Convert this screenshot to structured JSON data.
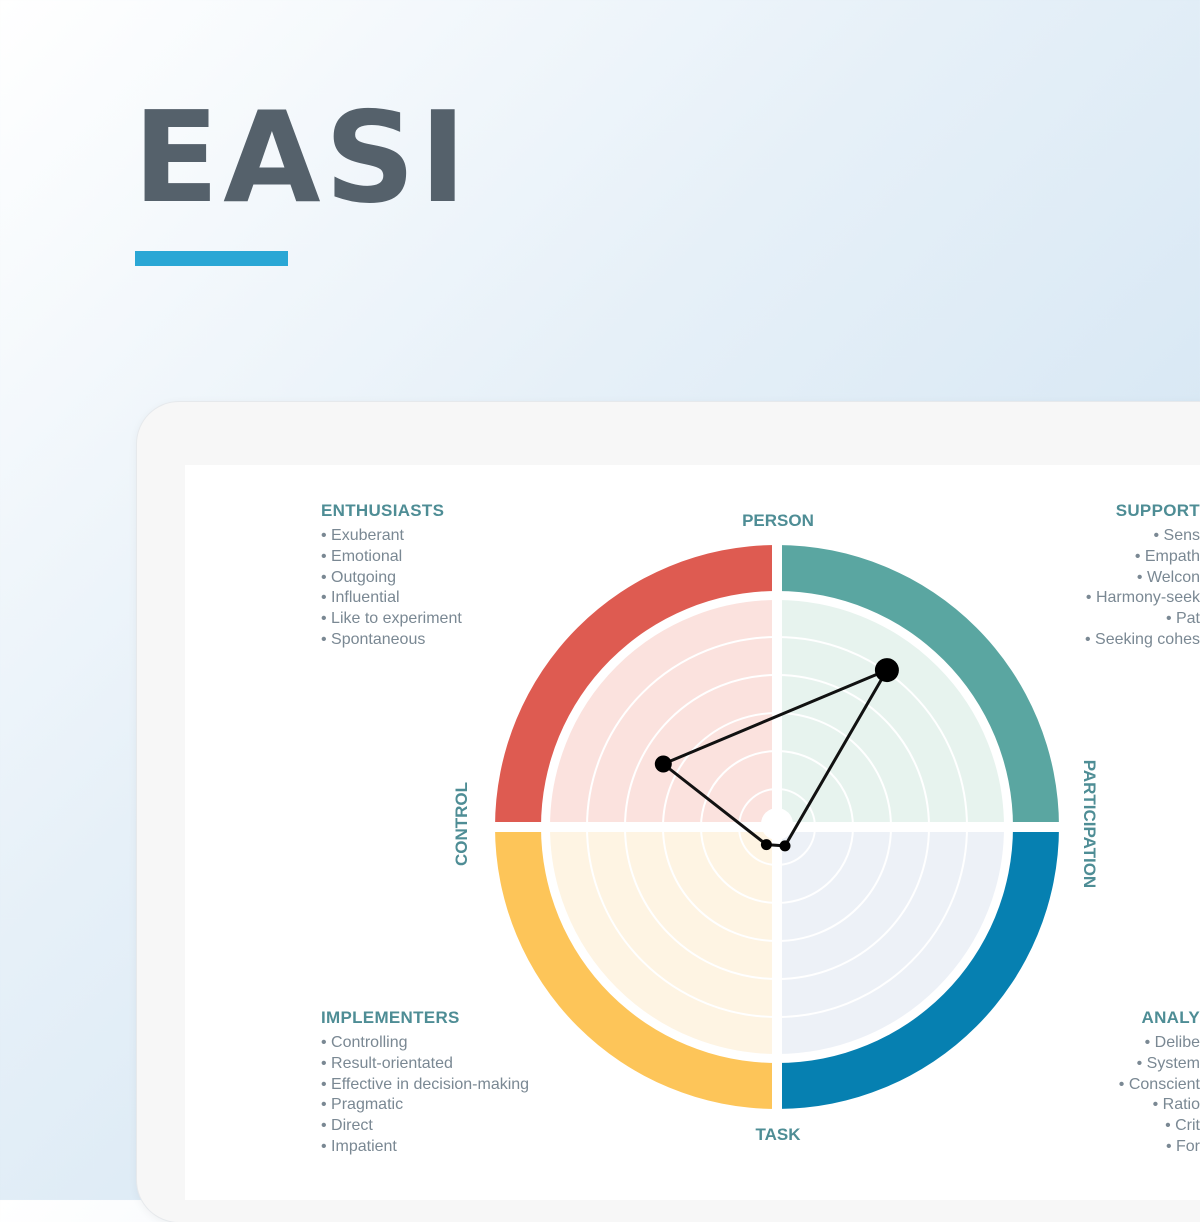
{
  "logo": {
    "text": "EASI",
    "underline_color": "#2aa7d5"
  },
  "quadrants": {
    "enthusiasts": {
      "title": "ENTHUSIASTS",
      "items": [
        "Exuberant",
        "Emotional",
        "Outgoing",
        "Influential",
        "Like to experiment",
        "Spontaneous"
      ]
    },
    "supporters": {
      "title": "SUPPORT",
      "items": [
        "Sens",
        "Empath",
        "Welcon",
        "Harmony-seek",
        "Pat",
        "Seeking cohes"
      ]
    },
    "implementers": {
      "title": "IMPLEMENTERS",
      "items": [
        "Controlling",
        "Result-orientated",
        "Effective in decision-making",
        "Pragmatic",
        "Direct",
        "Impatient"
      ]
    },
    "analysts": {
      "title": "ANALY",
      "items": [
        "Delibe",
        "System",
        "Conscient",
        "Ratio",
        "Crit",
        "For"
      ]
    }
  },
  "axes": {
    "top": "PERSON",
    "bottom": "TASK",
    "left": "CONTROL",
    "right": "PARTICIPATION"
  },
  "colors": {
    "enthusiasts": "#de5b51",
    "supporters": "#5aa6a1",
    "implementers": "#fdc559",
    "analysts": "#0680b1",
    "enthusiasts_fill": "#fbe2de",
    "supporters_fill": "#e7f3ee",
    "implementers_fill": "#fef4e3",
    "analysts_fill": "#edf1f7",
    "axis_label": "#4e8d95"
  },
  "chart_data": {
    "type": "radar",
    "rings": 6,
    "points": [
      {
        "quadrant": "supporters",
        "angle_deg": 55,
        "r": 0.84,
        "size": "large"
      },
      {
        "quadrant": "enthusiasts",
        "angle_deg": 151,
        "r": 0.57,
        "size": "medium"
      },
      {
        "quadrant": "implementers",
        "angle_deg": 239,
        "r": 0.09,
        "size": "small"
      },
      {
        "quadrant": "analysts",
        "angle_deg": 293,
        "r": 0.09,
        "size": "small"
      }
    ]
  }
}
